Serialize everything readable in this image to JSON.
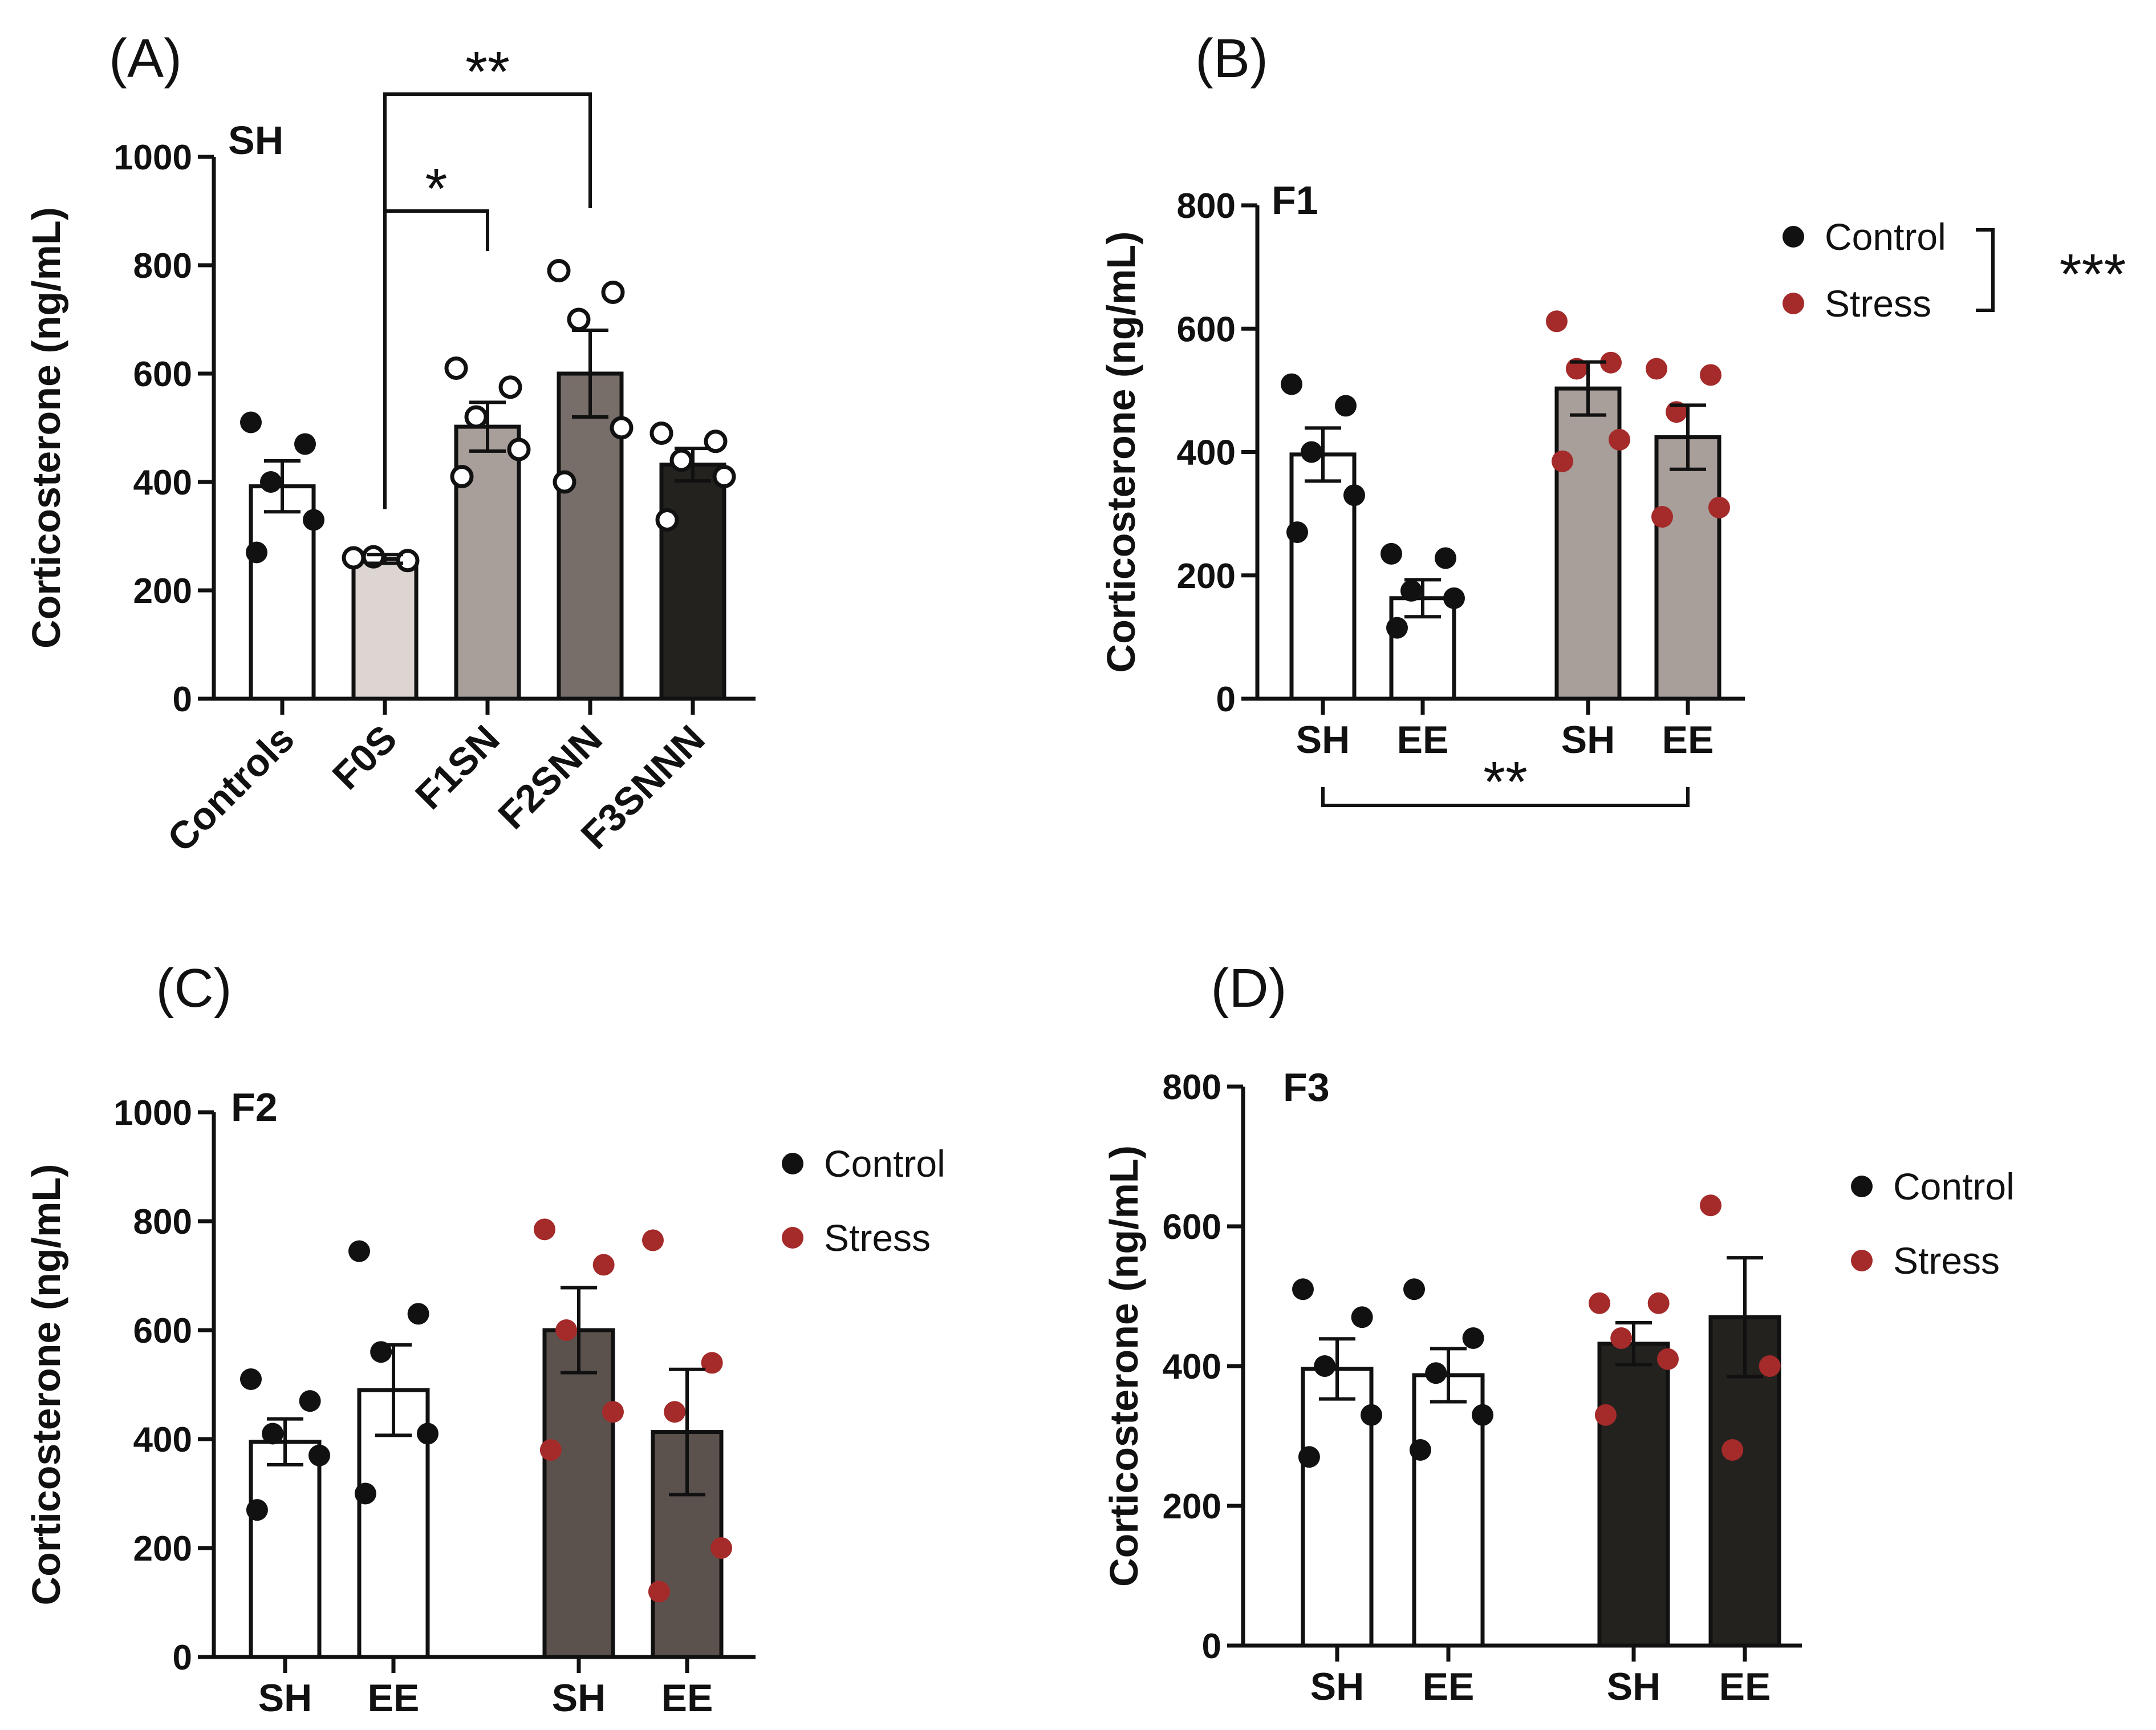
{
  "colors": {
    "control_dot": "#111111",
    "stress_dot": "#a52a2a",
    "axis": "#111111"
  },
  "chart_data": [
    {
      "panel": "(A)",
      "type": "bar",
      "title": "SH",
      "ylabel": "Corticosterone (ng/mL)",
      "ylim": [
        0,
        1000
      ],
      "yticks": [
        0,
        200,
        400,
        600,
        800,
        1000
      ],
      "categories": [
        "Controls",
        "F0S",
        "F1SN",
        "F2SNN",
        "F3SNNN"
      ],
      "bar_colors": [
        "#ffffff",
        "#ddd5d1",
        "#a89e9a",
        "#776d69",
        "#23221f"
      ],
      "values": [
        392,
        258,
        502,
        600,
        432
      ],
      "sem": [
        47,
        8,
        45,
        80,
        30
      ],
      "points": [
        [
          510,
          470,
          400,
          330,
          270
        ],
        [
          260,
          255,
          262
        ],
        [
          610,
          575,
          520,
          460,
          410
        ],
        [
          790,
          750,
          700,
          500,
          400
        ],
        [
          490,
          475,
          440,
          410,
          330
        ]
      ],
      "point_style": [
        "filled",
        "open",
        "open",
        "open",
        "open"
      ],
      "significance": [
        {
          "from": "F0S",
          "to": "F1SN",
          "label": "*"
        },
        {
          "from": "F0S",
          "to": "F2SNN",
          "label": "**"
        }
      ]
    },
    {
      "panel": "(B)",
      "type": "bar",
      "title": "F1",
      "ylabel": "Corticosterone (ng/mL)",
      "ylim": [
        0,
        800
      ],
      "yticks": [
        0,
        200,
        400,
        600,
        800
      ],
      "categories": [
        "SH",
        "EE",
        "SH",
        "EE"
      ],
      "groups": [
        "Control",
        "Control",
        "Stress",
        "Stress"
      ],
      "bar_colors": [
        "#ffffff",
        "#ffffff",
        "#a89e9a",
        "#a89e9a"
      ],
      "values": [
        396,
        163,
        503,
        424
      ],
      "sem": [
        43,
        30,
        43,
        52
      ],
      "points": [
        [
          510,
          475,
          400,
          330,
          270
        ],
        [
          235,
          228,
          175,
          163,
          115
        ],
        [
          612,
          545,
          535,
          420,
          385
        ],
        [
          535,
          525,
          465,
          310,
          295
        ]
      ],
      "legend": [
        "Control",
        "Stress"
      ],
      "significance": [
        {
          "from": "Control",
          "to": "Stress",
          "label": "***"
        },
        {
          "from": "SH",
          "to": "EE",
          "label": "**"
        }
      ]
    },
    {
      "panel": "(C)",
      "type": "bar",
      "title": "F2",
      "ylabel": "Corticosterone (ng/mL)",
      "ylim": [
        0,
        1000
      ],
      "yticks": [
        0,
        200,
        400,
        600,
        800,
        1000
      ],
      "categories": [
        "SH",
        "EE",
        "SH",
        "EE"
      ],
      "groups": [
        "Control",
        "Control",
        "Stress",
        "Stress"
      ],
      "bar_colors": [
        "#ffffff",
        "#ffffff",
        "#5b524e",
        "#5b524e"
      ],
      "values": [
        395,
        490,
        600,
        413
      ],
      "sem": [
        42,
        83,
        78,
        115
      ],
      "points": [
        [
          510,
          470,
          410,
          370,
          270
        ],
        [
          745,
          630,
          560,
          410,
          300
        ],
        [
          785,
          720,
          600,
          450,
          380
        ],
        [
          765,
          540,
          450,
          200,
          120
        ]
      ],
      "legend": [
        "Control",
        "Stress"
      ]
    },
    {
      "panel": "(D)",
      "type": "bar",
      "title": "F3",
      "ylabel": "Corticosterone (ng/mL)",
      "ylim": [
        0,
        800
      ],
      "yticks": [
        0,
        200,
        400,
        600,
        800
      ],
      "categories": [
        "SH",
        "EE",
        "SH",
        "EE"
      ],
      "groups": [
        "Control",
        "Control",
        "Stress",
        "Stress"
      ],
      "bar_colors": [
        "#ffffff",
        "#ffffff",
        "#23221f",
        "#23221f"
      ],
      "values": [
        396,
        387,
        432,
        470
      ],
      "sem": [
        43,
        38,
        30,
        85
      ],
      "points": [
        [
          510,
          470,
          400,
          330,
          270
        ],
        [
          510,
          440,
          390,
          330,
          280
        ],
        [
          490,
          490,
          440,
          410,
          330
        ],
        [
          630,
          400,
          280
        ]
      ],
      "legend": [
        "Control",
        "Stress"
      ]
    }
  ]
}
